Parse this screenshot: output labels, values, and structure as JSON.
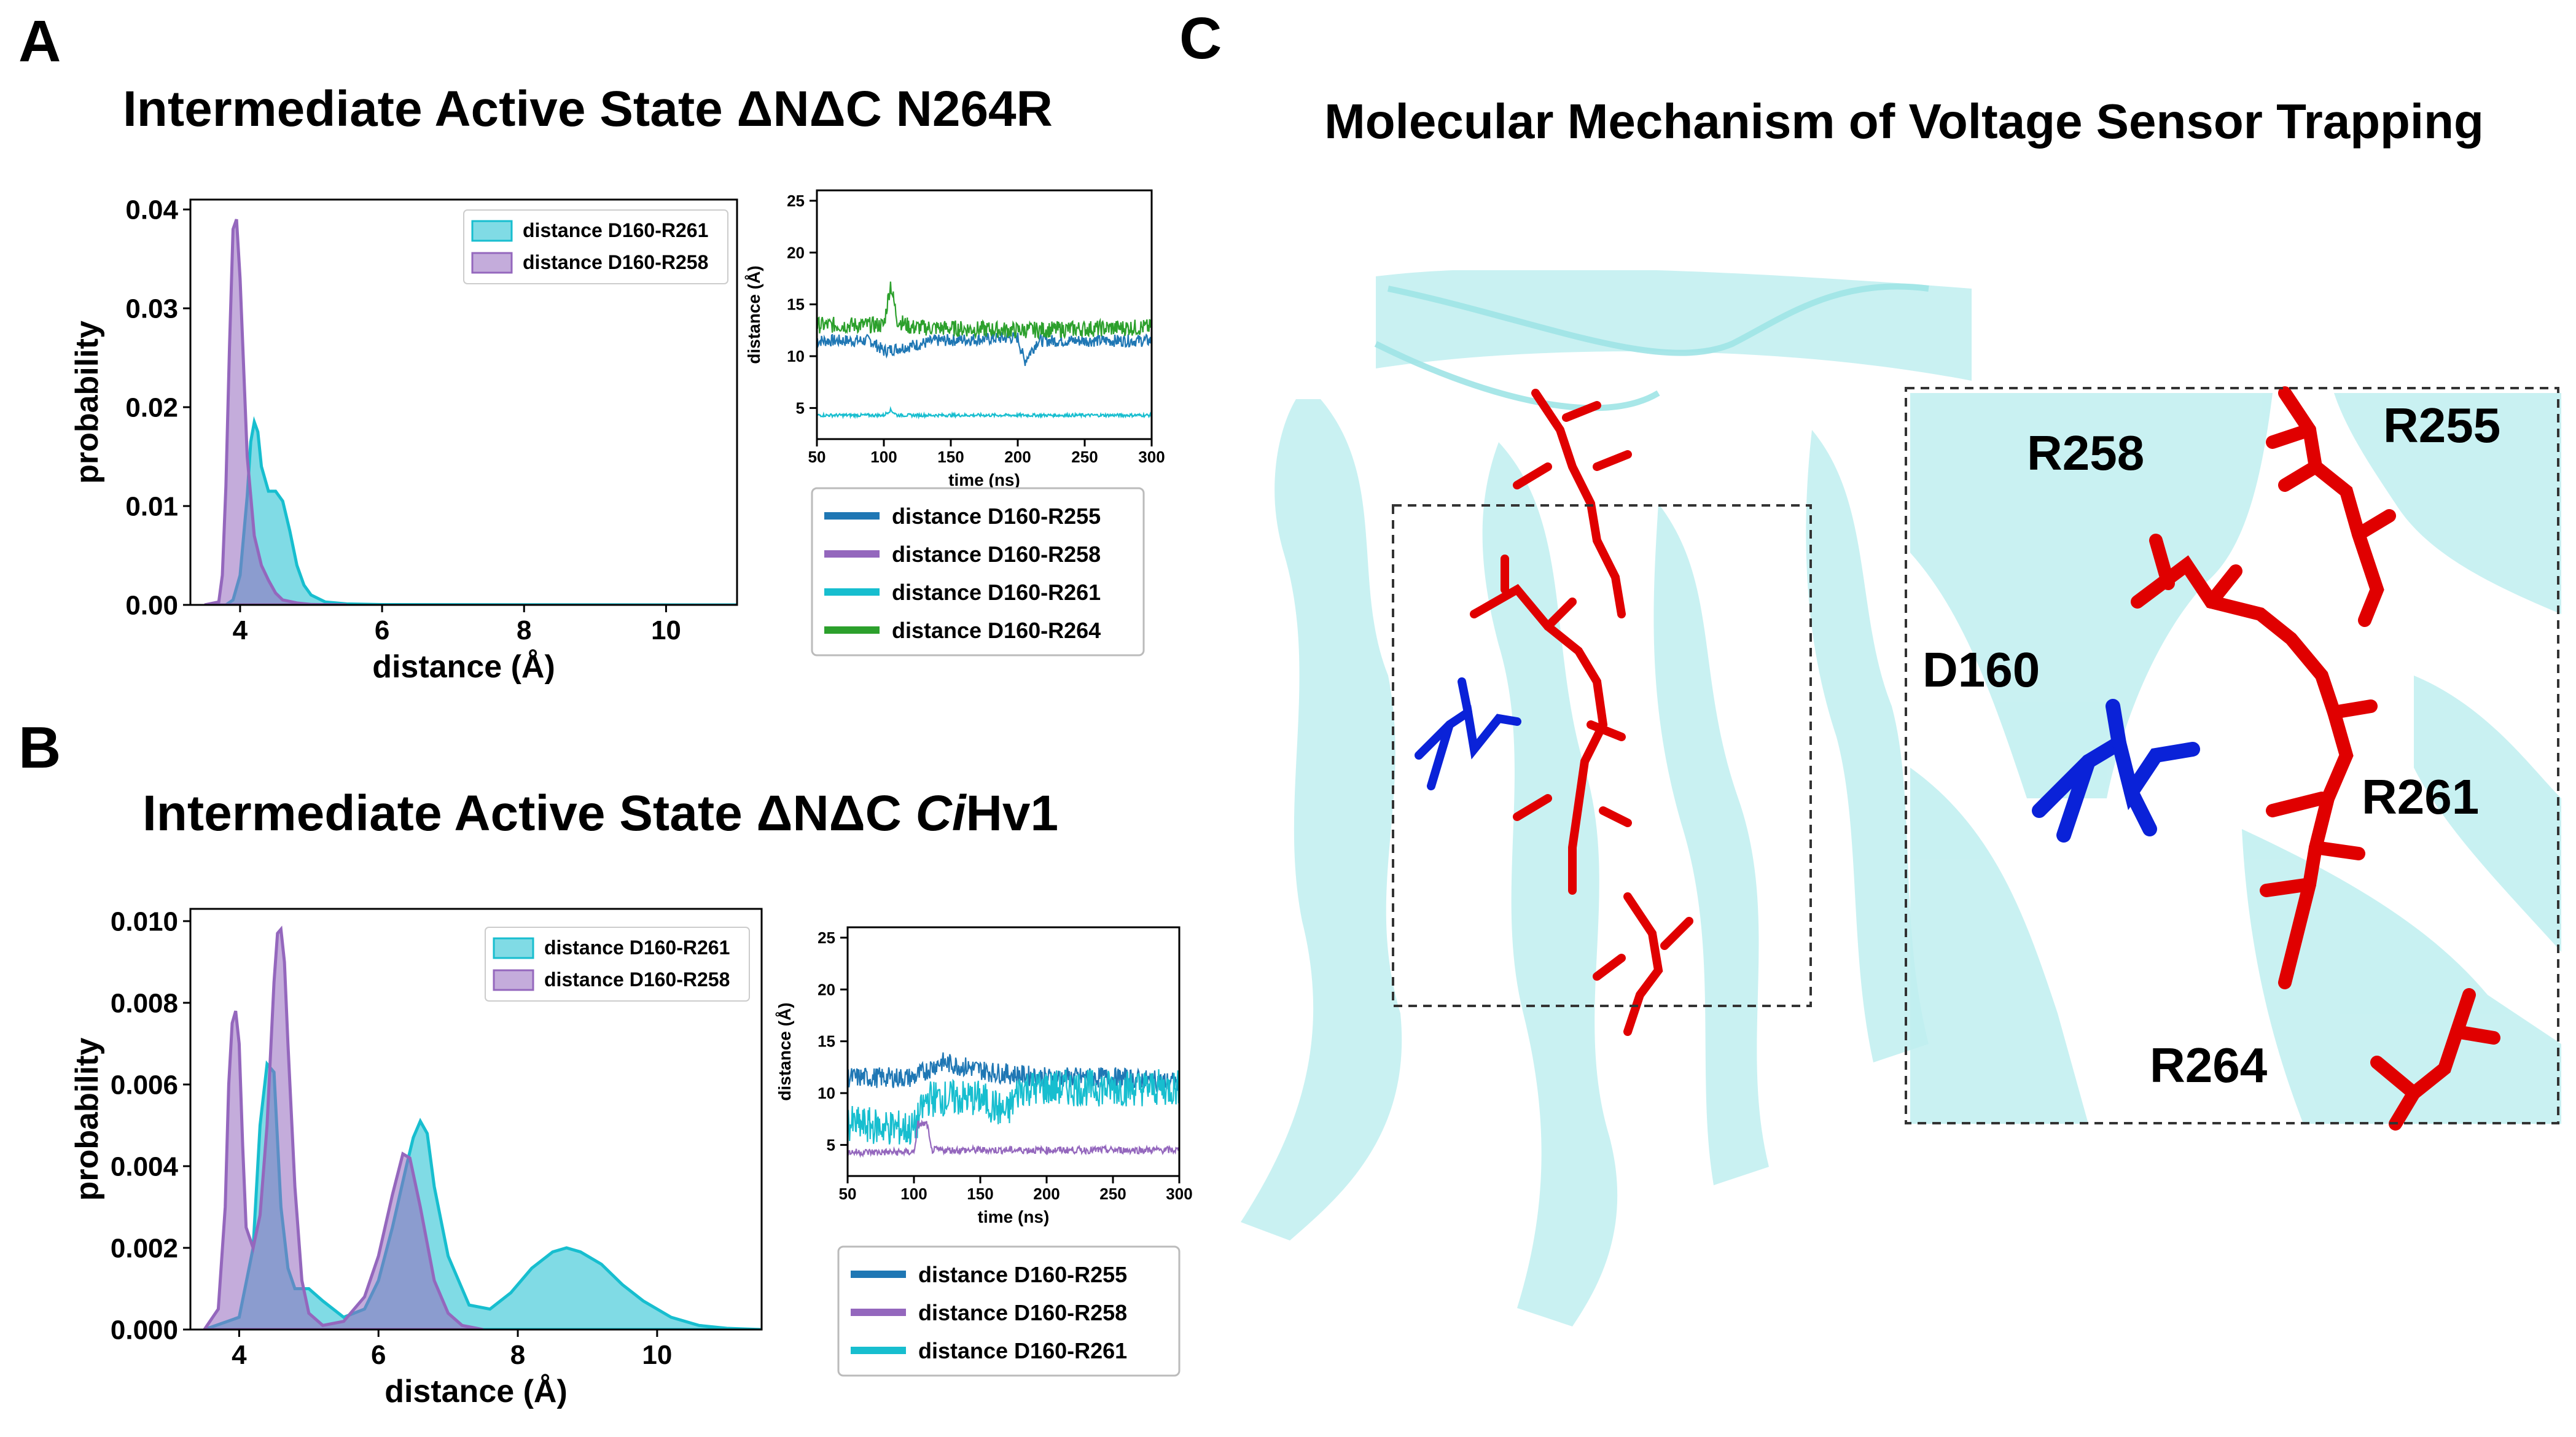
{
  "panels": {
    "A": {
      "letter": "A",
      "title": "Intermediate Active State ΔNΔC N264R"
    },
    "B": {
      "letter": "B",
      "title_part1": "Intermediate Active State ΔNΔC ",
      "title_italic": "Ci",
      "title_part2": "Hv1"
    },
    "C": {
      "letter": "C",
      "title": "Molecular Mechanism of Voltage Sensor Trapping",
      "residue_labels": [
        "R258",
        "R255",
        "D160",
        "R261",
        "R264"
      ]
    }
  },
  "colors": {
    "D160-R255": "#1f77b4",
    "D160-R258": "#9467bd",
    "D160-R261": "#17becf",
    "D160-R264": "#2ca02c",
    "red_residues": "#e00000",
    "blue_residue": "#0a22d8",
    "protein": "#bfeff0"
  },
  "chart_data": [
    {
      "id": "A-hist",
      "type": "area",
      "xlabel": "distance (Å)",
      "ylabel": "probability",
      "xlim": [
        3.3,
        11
      ],
      "ylim": [
        0,
        0.041
      ],
      "xticks": [
        "4",
        "6",
        "8",
        "10"
      ],
      "yticks": [
        "0.00",
        "0.01",
        "0.02",
        "0.03",
        "0.04"
      ],
      "legend_position": "top-right",
      "series": [
        {
          "name": "distance D160-R261",
          "x": [
            3.5,
            3.8,
            3.9,
            4.0,
            4.1,
            4.15,
            4.2,
            4.25,
            4.3,
            4.4,
            4.5,
            4.6,
            4.7,
            4.8,
            4.9,
            5.0,
            5.2,
            5.5,
            6.0,
            8.0,
            11.0
          ],
          "values": [
            0,
            0,
            0.0005,
            0.003,
            0.011,
            0.0165,
            0.0185,
            0.0175,
            0.014,
            0.0115,
            0.0115,
            0.0105,
            0.0075,
            0.004,
            0.002,
            0.001,
            0.0003,
            0.0001,
            3e-05,
            2e-05,
            0
          ]
        },
        {
          "name": "distance D160-R258",
          "x": [
            3.5,
            3.7,
            3.75,
            3.8,
            3.85,
            3.9,
            3.95,
            4.0,
            4.05,
            4.1,
            4.2,
            4.3,
            4.4,
            4.5,
            4.6,
            4.8,
            5.0,
            5.5
          ],
          "values": [
            0,
            0.0003,
            0.003,
            0.012,
            0.026,
            0.038,
            0.039,
            0.033,
            0.024,
            0.015,
            0.007,
            0.004,
            0.0025,
            0.0012,
            0.0005,
            0.0002,
            5e-05,
            0
          ]
        }
      ]
    },
    {
      "id": "A-timeseries",
      "type": "line",
      "xlabel": "time (ns)",
      "ylabel": "distance (Å)",
      "xlim": [
        50,
        300
      ],
      "ylim": [
        2,
        26
      ],
      "xticks": [
        "50",
        "100",
        "150",
        "200",
        "250",
        "300"
      ],
      "yticks": [
        "5",
        "10",
        "15",
        "20",
        "25"
      ],
      "legend": [
        "distance D160-R255",
        "distance D160-R258",
        "distance D160-R261",
        "distance D160-R264"
      ],
      "series": [
        {
          "name": "distance D160-R255",
          "segments": [
            [
              50,
              11.5
            ],
            [
              90,
              11.5
            ],
            [
              100,
              10.5
            ],
            [
              140,
              11.5
            ],
            [
              200,
              11.8
            ],
            [
              205,
              9.5
            ],
            [
              215,
              11.5
            ],
            [
              300,
              11.5
            ]
          ],
          "noise": 0.6
        },
        {
          "name": "distance D160-R264",
          "segments": [
            [
              50,
              13.0
            ],
            [
              100,
              13.0
            ],
            [
              105,
              17.0
            ],
            [
              110,
              13.5
            ],
            [
              120,
              12.8
            ],
            [
              200,
              12.5
            ],
            [
              300,
              12.8
            ]
          ],
          "noise": 0.8
        },
        {
          "name": "distance D160-R261",
          "segments": [
            [
              50,
              4.3
            ],
            [
              100,
              4.3
            ],
            [
              105,
              4.8
            ],
            [
              110,
              4.3
            ],
            [
              300,
              4.3
            ]
          ],
          "noise": 0.15
        }
      ]
    },
    {
      "id": "B-hist",
      "type": "area",
      "xlabel": "distance (Å)",
      "ylabel": "probability",
      "xlim": [
        3.3,
        11.5
      ],
      "ylim": [
        0,
        0.0103
      ],
      "xticks": [
        "4",
        "6",
        "8",
        "10"
      ],
      "yticks": [
        "0.000",
        "0.002",
        "0.004",
        "0.006",
        "0.008",
        "0.010"
      ],
      "legend_position": "top-right",
      "series": [
        {
          "name": "distance D160-R261",
          "x": [
            3.5,
            4.0,
            4.2,
            4.3,
            4.4,
            4.5,
            4.6,
            4.7,
            4.8,
            5.0,
            5.2,
            5.5,
            5.8,
            6.0,
            6.2,
            6.4,
            6.5,
            6.6,
            6.7,
            6.8,
            7.0,
            7.3,
            7.6,
            7.9,
            8.2,
            8.5,
            8.7,
            8.9,
            9.2,
            9.5,
            9.8,
            10.2,
            10.6,
            11.0,
            11.5
          ],
          "values": [
            0,
            0.0003,
            0.002,
            0.005,
            0.0065,
            0.0063,
            0.003,
            0.0015,
            0.001,
            0.001,
            0.0007,
            0.0003,
            0.0005,
            0.0012,
            0.0025,
            0.004,
            0.0047,
            0.0051,
            0.0048,
            0.0035,
            0.0018,
            0.0006,
            0.0005,
            0.0009,
            0.0015,
            0.0019,
            0.002,
            0.0019,
            0.0016,
            0.0011,
            0.0007,
            0.0003,
            0.0001,
            3e-05,
            0
          ]
        },
        {
          "name": "distance D160-R258",
          "x": [
            3.5,
            3.7,
            3.8,
            3.85,
            3.9,
            3.95,
            4.0,
            4.05,
            4.1,
            4.2,
            4.3,
            4.4,
            4.5,
            4.55,
            4.6,
            4.65,
            4.7,
            4.8,
            4.9,
            5.0,
            5.2,
            5.5,
            5.8,
            6.0,
            6.2,
            6.35,
            6.45,
            6.6,
            6.8,
            7.0,
            7.2,
            7.5
          ],
          "values": [
            0,
            0.0005,
            0.003,
            0.006,
            0.0075,
            0.0078,
            0.007,
            0.0045,
            0.0025,
            0.002,
            0.0028,
            0.005,
            0.0085,
            0.0097,
            0.0098,
            0.009,
            0.007,
            0.0035,
            0.0012,
            0.0004,
            0.0001,
            0.0002,
            0.0008,
            0.0018,
            0.0033,
            0.0043,
            0.0042,
            0.003,
            0.0012,
            0.0004,
            0.0001,
            0
          ]
        }
      ]
    },
    {
      "id": "B-timeseries",
      "type": "line",
      "xlabel": "time (ns)",
      "ylabel": "distance (Å)",
      "xlim": [
        50,
        300
      ],
      "ylim": [
        2,
        26
      ],
      "xticks": [
        "50",
        "100",
        "150",
        "200",
        "250",
        "300"
      ],
      "yticks": [
        "5",
        "10",
        "15",
        "20",
        "25"
      ],
      "legend": [
        "distance D160-R255",
        "distance D160-R258",
        "distance D160-R261"
      ],
      "series": [
        {
          "name": "distance D160-R255",
          "segments": [
            [
              50,
              11.5
            ],
            [
              100,
              11.5
            ],
            [
              120,
              13.0
            ],
            [
              160,
              12.0
            ],
            [
              200,
              11.5
            ],
            [
              250,
              11.5
            ],
            [
              300,
              11.0
            ]
          ],
          "noise": 1.0
        },
        {
          "name": "distance D160-R261",
          "segments": [
            [
              50,
              7.0
            ],
            [
              100,
              6.5
            ],
            [
              110,
              9.5
            ],
            [
              150,
              9.5
            ],
            [
              170,
              8.0
            ],
            [
              180,
              10.5
            ],
            [
              300,
              10.5
            ]
          ],
          "noise": 1.8
        },
        {
          "name": "distance D160-R258",
          "segments": [
            [
              50,
              4.3
            ],
            [
              100,
              4.3
            ],
            [
              103,
              7.0
            ],
            [
              110,
              7.0
            ],
            [
              113,
              4.5
            ],
            [
              300,
              4.5
            ]
          ],
          "noise": 0.35
        }
      ]
    }
  ]
}
